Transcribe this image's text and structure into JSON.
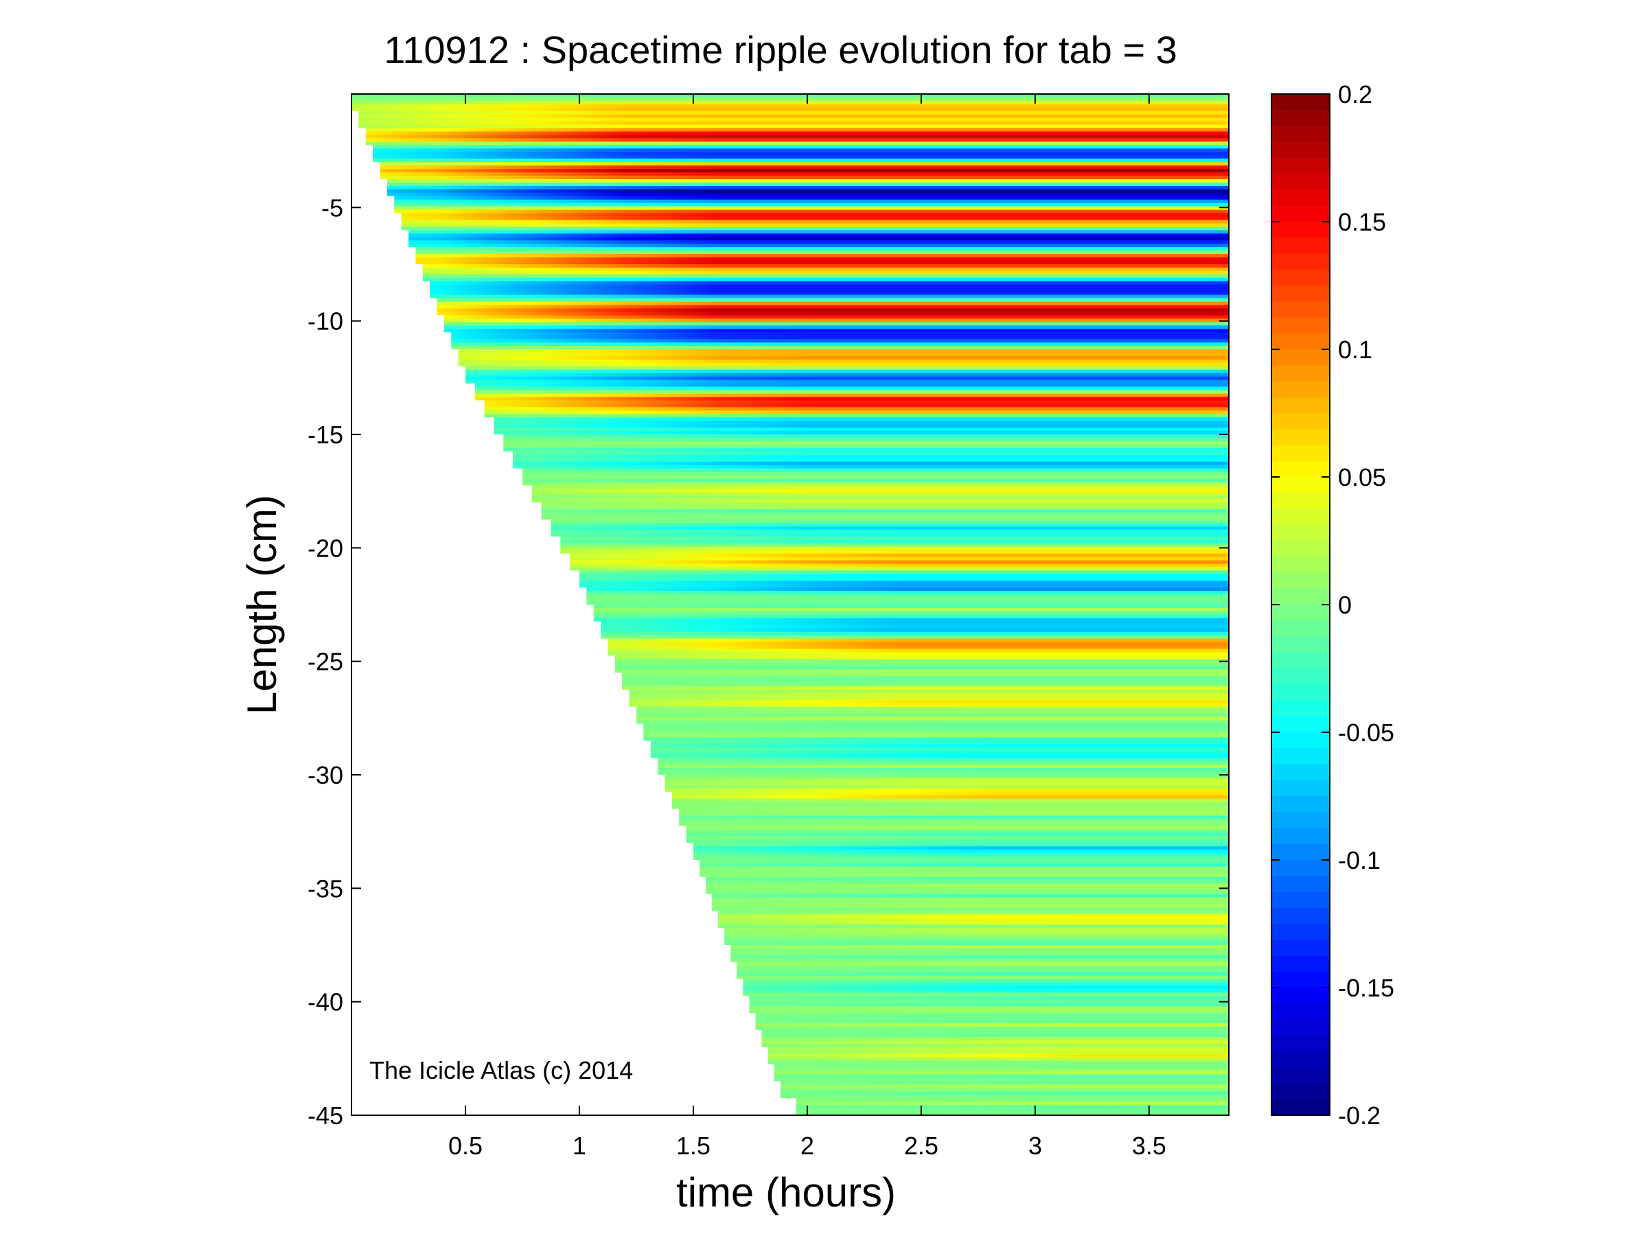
{
  "chart_data": {
    "type": "heatmap",
    "title": "110912 : Spacetime ripple evolution for tab = 3",
    "xlabel": "time (hours)",
    "ylabel": "Length (cm)",
    "xlim": [
      0,
      3.85
    ],
    "ylim": [
      -45,
      0
    ],
    "xticks": [
      0.5,
      1,
      1.5,
      2,
      2.5,
      3,
      3.5
    ],
    "xtick_labels": [
      "0.5",
      "1",
      "1.5",
      "2",
      "2.5",
      "3",
      "3.5"
    ],
    "yticks": [
      -5,
      -10,
      -15,
      -20,
      -25,
      -30,
      -35,
      -40,
      -45
    ],
    "ytick_labels": [
      "-5",
      "-10",
      "-15",
      "-20",
      "-25",
      "-30",
      "-35",
      "-40",
      "-45"
    ],
    "colorbar": {
      "colormap": "jet",
      "clim": [
        -0.2,
        0.2
      ],
      "ticks": [
        0.2,
        0.15,
        0.1,
        0.05,
        0,
        -0.05,
        -0.1,
        -0.15,
        -0.2
      ],
      "tick_labels": [
        "0.2",
        "0.15",
        "0.1",
        "0.05",
        "0",
        "-0.05",
        "-0.1",
        "-0.15",
        "-0.2"
      ]
    },
    "growth_front": {
      "time_hours": [
        0,
        0.5,
        1.0,
        1.5,
        1.9,
        2.1
      ],
      "length_cm": [
        0,
        -12,
        -21,
        -33,
        -44,
        -45
      ]
    },
    "ripple_bands": [
      {
        "length_cm": -0.8,
        "amplitude": 0.08
      },
      {
        "length_cm": -1.9,
        "amplitude": 0.17
      },
      {
        "length_cm": -2.6,
        "amplitude": -0.17
      },
      {
        "length_cm": -3.4,
        "amplitude": 0.19
      },
      {
        "length_cm": -4.4,
        "amplitude": -0.19
      },
      {
        "length_cm": -5.4,
        "amplitude": 0.15
      },
      {
        "length_cm": -6.4,
        "amplitude": -0.17
      },
      {
        "length_cm": -7.4,
        "amplitude": 0.16
      },
      {
        "length_cm": -8.6,
        "amplitude": -0.16
      },
      {
        "length_cm": -9.6,
        "amplitude": 0.19
      },
      {
        "length_cm": -10.6,
        "amplitude": -0.16
      },
      {
        "length_cm": -11.6,
        "amplitude": 0.1
      },
      {
        "length_cm": -12.6,
        "amplitude": -0.12
      },
      {
        "length_cm": -13.6,
        "amplitude": 0.16
      },
      {
        "length_cm": -14.6,
        "amplitude": -0.08
      },
      {
        "length_cm": -16.2,
        "amplitude": -0.07
      },
      {
        "length_cm": -17.6,
        "amplitude": 0.04
      },
      {
        "length_cm": -19.3,
        "amplitude": -0.05
      },
      {
        "length_cm": -20.5,
        "amplitude": 0.09
      },
      {
        "length_cm": -21.6,
        "amplitude": -0.09
      },
      {
        "length_cm": -23.5,
        "amplitude": -0.09
      },
      {
        "length_cm": -24.3,
        "amplitude": 0.1
      },
      {
        "length_cm": -26.7,
        "amplitude": 0.05
      },
      {
        "length_cm": -28.9,
        "amplitude": -0.05
      },
      {
        "length_cm": -30.8,
        "amplitude": 0.06
      },
      {
        "length_cm": -33.3,
        "amplitude": -0.05
      },
      {
        "length_cm": -36.4,
        "amplitude": 0.04
      },
      {
        "length_cm": -39.4,
        "amplitude": -0.04
      },
      {
        "length_cm": -42.2,
        "amplitude": 0.04
      }
    ]
  },
  "watermark": "The Icicle Atlas (c) 2014"
}
